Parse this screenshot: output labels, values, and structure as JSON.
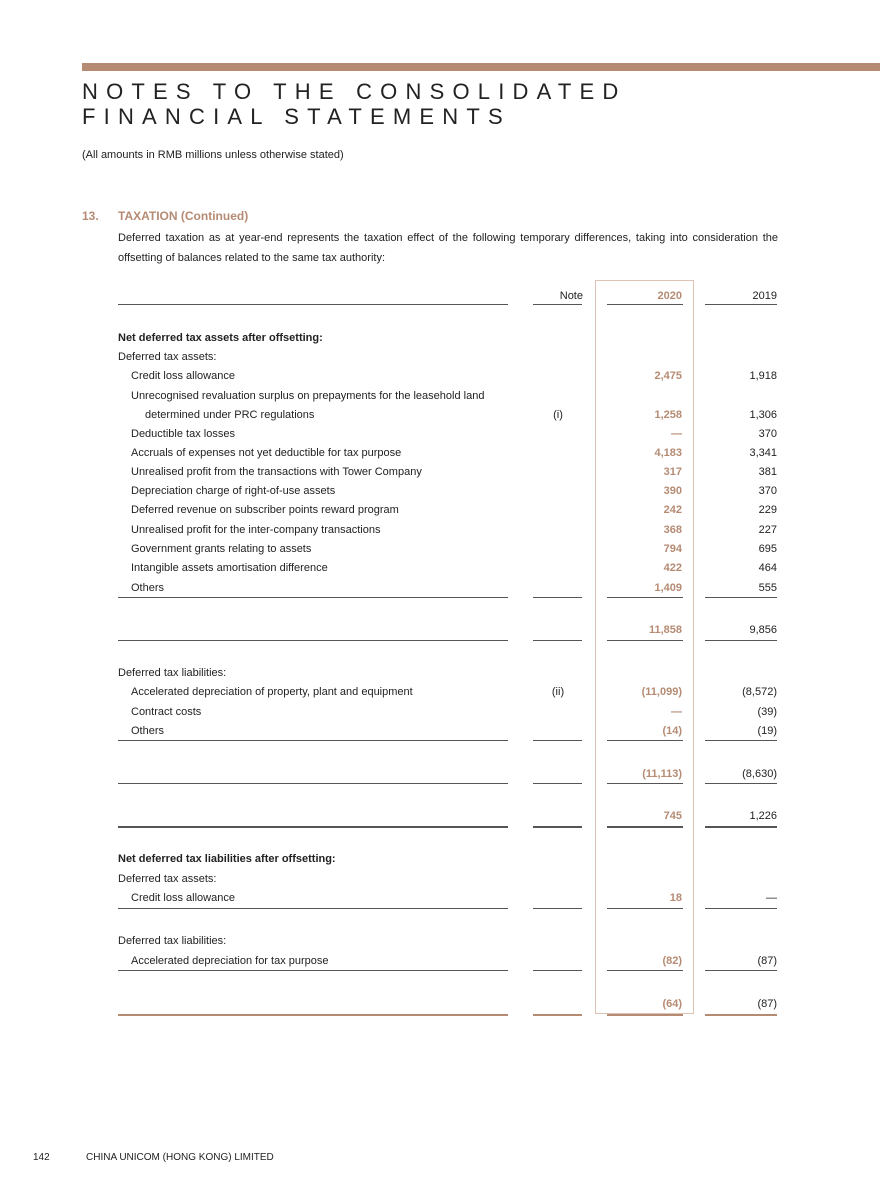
{
  "header": {
    "title_line1": "NOTES TO THE CONSOLIDATED",
    "title_line2": "FINANCIAL STATEMENTS",
    "subtitle": "(All amounts in RMB millions unless otherwise stated)"
  },
  "section": {
    "number": "13.",
    "title": "TAXATION (Continued)",
    "intro": "Deferred taxation as at year-end represents the taxation effect of the following temporary differences, taking into consideration the offsetting of balances related to the same tax authority:"
  },
  "table": {
    "columns": {
      "note": "Note",
      "y2020": "2020",
      "y2019": "2019"
    },
    "rows": [
      {
        "label": "Net deferred tax assets after offsetting:",
        "style": "bold"
      },
      {
        "label": "Deferred tax assets:"
      },
      {
        "label": "Credit loss allowance",
        "style": "ind",
        "v2020": "2,475",
        "v2019": "1,918"
      },
      {
        "label": "Unrecognised revaluation surplus on prepayments for the leasehold land",
        "style": "ind"
      },
      {
        "label": "determined under PRC regulations",
        "style": "ind2",
        "note": "(i)",
        "v2020": "1,258",
        "v2019": "1,306"
      },
      {
        "label": "Deductible tax losses",
        "style": "ind",
        "v2020": "—",
        "v2019": "370"
      },
      {
        "label": "Accruals of expenses not yet deductible for tax purpose",
        "style": "ind",
        "v2020": "4,183",
        "v2019": "3,341"
      },
      {
        "label": "Unrealised profit from the transactions with Tower Company",
        "style": "ind",
        "v2020": "317",
        "v2019": "381"
      },
      {
        "label": "Depreciation charge of right-of-use assets",
        "style": "ind",
        "v2020": "390",
        "v2019": "370"
      },
      {
        "label": "Deferred revenue on subscriber points reward program",
        "style": "ind",
        "v2020": "242",
        "v2019": "229"
      },
      {
        "label": "Unrealised profit for the inter-company transactions",
        "style": "ind",
        "v2020": "368",
        "v2019": "227"
      },
      {
        "label": "Government grants relating to assets",
        "style": "ind",
        "v2020": "794",
        "v2019": "695"
      },
      {
        "label": "Intangible assets amortisation difference",
        "style": "ind",
        "v2020": "422",
        "v2019": "464"
      },
      {
        "label": "Others",
        "style": "ind",
        "v2020": "1,409",
        "v2019": "555"
      },
      {
        "v2020": "11,858",
        "v2019": "9,856"
      },
      {
        "label": "Deferred tax liabilities:"
      },
      {
        "label": "Accelerated depreciation of property, plant and equipment",
        "style": "ind",
        "note": "(ii)",
        "v2020": "(11,099)",
        "v2019": "(8,572)"
      },
      {
        "label": "Contract costs",
        "style": "ind",
        "v2020": "—",
        "v2019": "(39)"
      },
      {
        "label": "Others",
        "style": "ind",
        "v2020": "(14)",
        "v2019": "(19)"
      },
      {
        "v2020": "(11,113)",
        "v2019": "(8,630)"
      },
      {
        "v2020": "745",
        "v2019": "1,226"
      },
      {
        "label": "Net deferred tax liabilities after offsetting:",
        "style": "bold"
      },
      {
        "label": "Deferred tax assets:"
      },
      {
        "label": "Credit loss allowance",
        "style": "ind",
        "v2020": "18",
        "v2019": "—"
      },
      {
        "label": "Deferred tax liabilities:"
      },
      {
        "label": "Accelerated depreciation for tax purpose",
        "style": "ind",
        "v2020": "(82)",
        "v2019": "(87)"
      },
      {
        "v2020": "(64)",
        "v2019": "(87)"
      }
    ]
  },
  "footer": {
    "page_number": "142",
    "company": "CHINA UNICOM (HONG KONG) LIMITED"
  },
  "colors": {
    "accent": "#b58b73"
  }
}
